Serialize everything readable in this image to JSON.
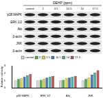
{
  "blot": {
    "title": "DEHP (ppm)",
    "lanes": [
      "control",
      "2",
      "3.5",
      "10.5",
      "14",
      "17.5"
    ],
    "rows": [
      "p38 MAPK",
      "ERK 1/2",
      "Akt",
      "β-actin",
      "JNK",
      "β-actin"
    ]
  },
  "chart_data": {
    "type": "bar",
    "y_label": "Relative intensity",
    "categories": [
      "p38 MAPK",
      "ERK 1/2",
      "Akt",
      "JNK"
    ],
    "series": [
      {
        "name": "control",
        "color": "#d9d9d9",
        "values": [
          1,
          1,
          1,
          1
        ]
      },
      {
        "name": "2",
        "color": "#4daf4a",
        "values": [
          1.2,
          1.1,
          1.1,
          1.2
        ]
      },
      {
        "name": "3.5",
        "color": "#e6d23c",
        "values": [
          1.3,
          1.2,
          1.3,
          1.4
        ]
      },
      {
        "name": "10.5",
        "color": "#3a78c2",
        "values": [
          1.5,
          1.4,
          1.4,
          1.8
        ]
      },
      {
        "name": "14",
        "color": "#3cb4a0",
        "values": [
          1.7,
          1.5,
          1.5,
          2.1
        ]
      },
      {
        "name": "17.5",
        "color": "#c44e52",
        "values": [
          1.9,
          1.6,
          1.6,
          2.4
        ]
      }
    ],
    "ylim": [
      0,
      3
    ],
    "yticks": [
      0,
      1,
      2,
      3
    ],
    "grid": false,
    "legend": "top"
  }
}
